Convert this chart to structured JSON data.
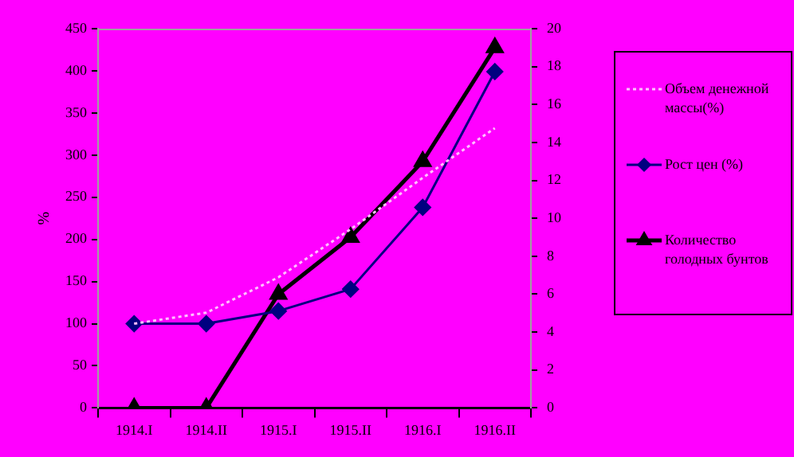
{
  "chart_data": {
    "type": "line",
    "ylabel": "%",
    "categories": [
      "1914.I",
      "1914.II",
      "1915.I",
      "1915.II",
      "1916.I",
      "1916.II"
    ],
    "series": [
      {
        "name": "Объем денежной массы(%)",
        "color": "#ffc0ff",
        "values": [
          100,
          113,
          155,
          212,
          273,
          332
        ],
        "marker": "none",
        "line_style": "dotted"
      },
      {
        "name": "Рост цен (%)",
        "color": "#000080",
        "values": [
          100,
          100,
          115,
          141,
          238,
          399
        ],
        "marker": "diamond",
        "line_style": "solid"
      },
      {
        "name": "Количество голодных бунтов",
        "color": "#000000",
        "values": [
          0,
          0,
          6,
          9,
          13,
          19
        ],
        "axis": "y2",
        "marker": "triangle",
        "line_style": "solid"
      }
    ],
    "ylim": [
      0,
      450
    ],
    "yticks": [
      0,
      50,
      100,
      150,
      200,
      250,
      300,
      350,
      400,
      450
    ],
    "y2lim": [
      0,
      20
    ],
    "y2ticks": [
      0,
      2,
      4,
      6,
      8,
      10,
      12,
      14,
      16,
      18,
      20
    ],
    "grid": false,
    "legend": "right"
  }
}
